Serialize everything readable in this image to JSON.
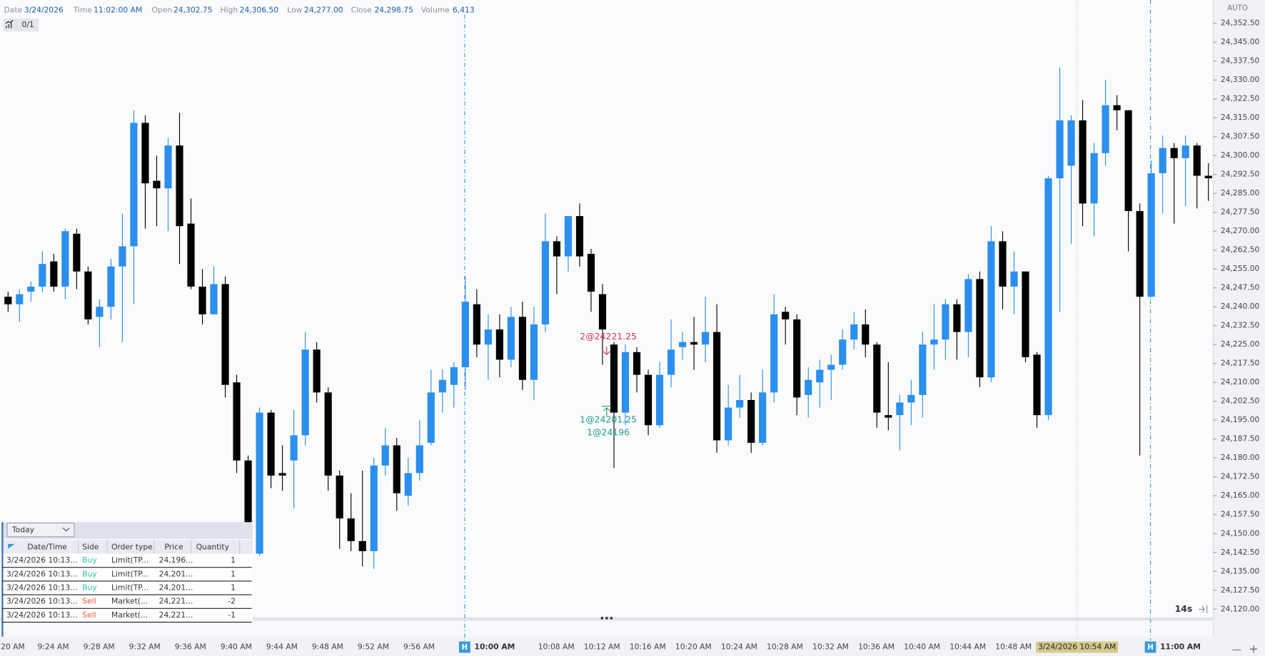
{
  "header": [
    {
      "label": "Date",
      "value": "3/24/2026"
    },
    {
      "label": "Time",
      "value": "11:02:00 AM"
    },
    {
      "label": "Open",
      "value": "24,302.75"
    },
    {
      "label": "High",
      "value": "24,306.50"
    },
    {
      "label": "Low",
      "value": "24,277.00"
    },
    {
      "label": "Close",
      "value": "24,298.75"
    },
    {
      "label": "Volume",
      "value": "6,413"
    }
  ],
  "toolbar": {
    "counter": "0/1",
    "scale_mode": "AUTO",
    "timer": "14s"
  },
  "chart": {
    "ylim": [
      24116.75,
      24356
    ],
    "yticks": [
      {
        "value": 24352.5,
        "label": "24,352.50"
      },
      {
        "value": 24345,
        "label": "24,345.00"
      },
      {
        "value": 24337.5,
        "label": "24,337.50"
      },
      {
        "value": 24330,
        "label": "24,330.00"
      },
      {
        "value": 24322.5,
        "label": "24,322.50"
      },
      {
        "value": 24315,
        "label": "24,315.00"
      },
      {
        "value": 24307.5,
        "label": "24,307.50"
      },
      {
        "value": 24300,
        "label": "24,300.00"
      },
      {
        "value": 24292.5,
        "label": "24,292.50"
      },
      {
        "value": 24285,
        "label": "24,285.00"
      },
      {
        "value": 24277.5,
        "label": "24,277.50"
      },
      {
        "value": 24270,
        "label": "24,270.00"
      },
      {
        "value": 24262.5,
        "label": "24,262.50"
      },
      {
        "value": 24255,
        "label": "24,255.00"
      },
      {
        "value": 24247.5,
        "label": "24,247.50"
      },
      {
        "value": 24240,
        "label": "24,240.00"
      },
      {
        "value": 24232.5,
        "label": "24,232.50"
      },
      {
        "value": 24225,
        "label": "24,225.00"
      },
      {
        "value": 24217.5,
        "label": "24,217.50"
      },
      {
        "value": 24210,
        "label": "24,210.00"
      },
      {
        "value": 24202.5,
        "label": "24,202.50"
      },
      {
        "value": 24195,
        "label": "24,195.00"
      },
      {
        "value": 24187.5,
        "label": "24,187.50"
      },
      {
        "value": 24180,
        "label": "24,180.00"
      },
      {
        "value": 24172.5,
        "label": "24,172.50"
      },
      {
        "value": 24165,
        "label": "24,165.00"
      },
      {
        "value": 24157.5,
        "label": "24,157.50"
      },
      {
        "value": 24150,
        "label": "24,150.00"
      },
      {
        "value": 24142.5,
        "label": "24,142.50"
      },
      {
        "value": 24135,
        "label": "24,135.00"
      },
      {
        "value": 24127.5,
        "label": "24,127.50"
      },
      {
        "value": 24120,
        "label": "24,120.00"
      }
    ],
    "ohlc": [
      [
        24244,
        24246,
        24238,
        24241
      ],
      [
        24241,
        24247,
        24234,
        24245
      ],
      [
        24246,
        24250,
        24242,
        24248
      ],
      [
        24248,
        24262,
        24246,
        24257
      ],
      [
        24258,
        24261,
        24246,
        24248
      ],
      [
        24248,
        24271,
        24243,
        24270
      ],
      [
        24269,
        24271,
        24247,
        24254
      ],
      [
        24254,
        24256,
        24233,
        24235
      ],
      [
        24236,
        24243,
        24224,
        24240
      ],
      [
        24240,
        24259,
        24235,
        24256
      ],
      [
        24256,
        24277,
        24226,
        24264
      ],
      [
        24264,
        24318,
        24241,
        24313
      ],
      [
        24313,
        24316,
        24271,
        24289
      ],
      [
        24290,
        24300,
        24272,
        24287
      ],
      [
        24287,
        24307,
        24270,
        24304
      ],
      [
        24304,
        24317,
        24257,
        24272
      ],
      [
        24273,
        24283,
        24247,
        24248
      ],
      [
        24248,
        24255,
        24233,
        24237
      ],
      [
        24237,
        24256,
        24237,
        24249
      ],
      [
        24249,
        24252,
        24204,
        24209
      ],
      [
        24210,
        24213,
        24174,
        24179
      ],
      [
        24179,
        24181,
        24150,
        24154
      ],
      [
        24142,
        24200,
        24141,
        24198
      ],
      [
        24198,
        24199,
        24168,
        24173
      ],
      [
        24174,
        24185,
        24167,
        24173
      ],
      [
        24179,
        24199,
        24160,
        24189
      ],
      [
        24189,
        24230,
        24185,
        24223
      ],
      [
        24223,
        24226,
        24202,
        24206
      ],
      [
        24206,
        24208,
        24167,
        24173
      ],
      [
        24173,
        24175,
        24144,
        24156
      ],
      [
        24156,
        24166,
        24143,
        24147
      ],
      [
        24147,
        24175,
        24137,
        24143
      ],
      [
        24143,
        24180,
        24136,
        24177
      ],
      [
        24177,
        24192,
        24173,
        24185
      ],
      [
        24185,
        24188,
        24159,
        24166
      ],
      [
        24165,
        24180,
        24161,
        24174
      ],
      [
        24174,
        24195,
        24171,
        24185
      ],
      [
        24186,
        24215,
        24185,
        24206
      ],
      [
        24206,
        24215,
        24198,
        24211
      ],
      [
        24209,
        24218,
        24200,
        24216
      ],
      [
        24216,
        24252,
        24207,
        24242
      ],
      [
        24241,
        24247,
        24220,
        24225
      ],
      [
        24225,
        24237,
        24211,
        24231
      ],
      [
        24231,
        24237,
        24212,
        24219
      ],
      [
        24219,
        24240,
        24216,
        24236
      ],
      [
        24236,
        24242,
        24207,
        24211
      ],
      [
        24211,
        24240,
        24203,
        24233
      ],
      [
        24233,
        24277,
        24230,
        24266
      ],
      [
        24266,
        24268,
        24245,
        24260
      ],
      [
        24260,
        24276,
        24254,
        24276
      ],
      [
        24276,
        24281,
        24256,
        24260
      ],
      [
        24261,
        24263,
        24238,
        24246
      ],
      [
        24245,
        24249,
        24217,
        24231
      ],
      [
        24225,
        24226,
        24176,
        24198
      ],
      [
        24198,
        24225,
        24193,
        24222
      ],
      [
        24222,
        24224,
        24206,
        24213
      ],
      [
        24213,
        24215,
        24189,
        24193
      ],
      [
        24193,
        24218,
        24192,
        24213
      ],
      [
        24213,
        24235,
        24208,
        24223
      ],
      [
        24224,
        24230,
        24219,
        24226
      ],
      [
        24226,
        24236,
        24215,
        24225
      ],
      [
        24225,
        24244,
        24218,
        24230
      ],
      [
        24230,
        24241,
        24182,
        24187
      ],
      [
        24187,
        24209,
        24185,
        24200
      ],
      [
        24200,
        24213,
        24196,
        24203
      ],
      [
        24203,
        24206,
        24182,
        24186
      ],
      [
        24186,
        24215,
        24185,
        24206
      ],
      [
        24206,
        24245,
        24202,
        24237
      ],
      [
        24238,
        24240,
        24225,
        24235
      ],
      [
        24235,
        24237,
        24197,
        24204
      ],
      [
        24205,
        24216,
        24196,
        24211
      ],
      [
        24210,
        24219,
        24200,
        24215
      ],
      [
        24215,
        24221,
        24203,
        24217
      ],
      [
        24217,
        24231,
        24215,
        24227
      ],
      [
        24227,
        24238,
        24223,
        24233
      ],
      [
        24233,
        24239,
        24220,
        24225
      ],
      [
        24225,
        24226,
        24192,
        24198
      ],
      [
        24197,
        24218,
        24191,
        24196
      ],
      [
        24197,
        24205,
        24183,
        24202
      ],
      [
        24202,
        24211,
        24193,
        24205
      ],
      [
        24205,
        24230,
        24196,
        24225
      ],
      [
        24225,
        24241,
        24215,
        24227
      ],
      [
        24227,
        24243,
        24219,
        24241
      ],
      [
        24241,
        24243,
        24219,
        24230
      ],
      [
        24230,
        24253,
        24220,
        24251
      ],
      [
        24251,
        24254,
        24208,
        24212
      ],
      [
        24212,
        24272,
        24210,
        24266
      ],
      [
        24266,
        24270,
        24239,
        24248
      ],
      [
        24248,
        24262,
        24237,
        24254
      ],
      [
        24254,
        24254,
        24218,
        24220
      ],
      [
        24221,
        24222,
        24192,
        24197
      ],
      [
        24197,
        24292,
        24195,
        24291
      ],
      [
        24291,
        24335,
        24238,
        24314
      ],
      [
        24296,
        24316,
        24265,
        24314
      ],
      [
        24314,
        24322,
        24272,
        24281
      ],
      [
        24281,
        24305,
        24268,
        24301
      ],
      [
        24301,
        24330,
        24296,
        24320
      ],
      [
        24320,
        24324,
        24310,
        24318
      ],
      [
        24318,
        24318,
        24262,
        24278
      ],
      [
        24278,
        24281,
        24181,
        24244
      ],
      [
        24244,
        24298,
        24244,
        24293
      ],
      [
        24293,
        24308,
        24277,
        24303
      ],
      [
        24303,
        24305,
        24273,
        24299
      ],
      [
        24299,
        24308,
        24280,
        24304
      ],
      [
        24304,
        24305,
        24279,
        24292
      ],
      [
        24292,
        24297,
        24282,
        24291
      ]
    ],
    "time_labels": [
      "20 AM",
      "9:24 AM",
      "9:28 AM",
      "9:32 AM",
      "9:36 AM",
      "9:40 AM",
      "9:44 AM",
      "9:48 AM",
      "9:52 AM",
      "9:56 AM",
      "10:08 AM",
      "10:12 AM",
      "10:16 AM",
      "10:20 AM",
      "10:24 AM",
      "10:28 AM",
      "10:32 AM",
      "10:36 AM",
      "10:40 AM",
      "10:44 AM",
      "10:48 AM"
    ],
    "session_marker": "H",
    "session_labels": [
      "10:00 AM",
      "11:00 AM"
    ],
    "cursor_label": "3/24/2026 10:54 AM",
    "fills": [
      {
        "label": "2@24221.25",
        "side": "Sell"
      },
      {
        "label": "1@24201.25",
        "side": "Buy"
      },
      {
        "label": "1@24196",
        "side": "Buy"
      }
    ]
  },
  "orders": {
    "filter": "Today",
    "columns": [
      "Date/Time",
      "Side",
      "Order type",
      "Price",
      "Quantity"
    ],
    "rows": [
      [
        "3/24/2026  10:13...",
        "Buy",
        "Limit(TP...",
        "24,196...",
        "1"
      ],
      [
        "3/24/2026  10:13...",
        "Buy",
        "Limit(TP...",
        "24,201...",
        "1"
      ],
      [
        "3/24/2026  10:13...",
        "Buy",
        "Limit(TP...",
        "24,201...",
        "1"
      ],
      [
        "3/24/2026  10:13...",
        "Sell",
        "Market(...",
        "24,221...",
        "-2"
      ],
      [
        "3/24/2026  10:13...",
        "Sell",
        "Market(...",
        "24,221...",
        "-1"
      ]
    ]
  }
}
